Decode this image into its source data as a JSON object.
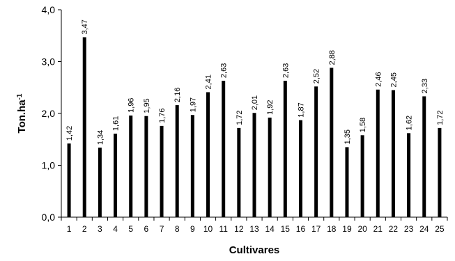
{
  "chart_data": {
    "type": "bar",
    "xlabel": "Cultivares",
    "ylabel": "Ton.ha",
    "ylabel_superscript": "-1",
    "ylim": [
      0,
      4
    ],
    "yticks": [
      0,
      1,
      2,
      3,
      4
    ],
    "ytick_labels": [
      "0,0",
      "1,0",
      "2,0",
      "3,0",
      "4,0"
    ],
    "grid": false,
    "bar_color": "#000000",
    "categories": [
      "1",
      "2",
      "3",
      "4",
      "5",
      "6",
      "7",
      "8",
      "9",
      "10",
      "11",
      "12",
      "13",
      "14",
      "15",
      "16",
      "17",
      "18",
      "19",
      "20",
      "21",
      "22",
      "23",
      "24",
      "25"
    ],
    "values": [
      1.42,
      3.47,
      1.34,
      1.61,
      1.96,
      1.95,
      1.76,
      2.16,
      1.97,
      2.41,
      2.63,
      1.72,
      2.01,
      1.92,
      2.63,
      1.87,
      2.52,
      2.88,
      1.35,
      1.58,
      2.46,
      2.45,
      1.62,
      2.33,
      1.72
    ],
    "value_labels": [
      "1,42",
      "3,47",
      "1,34",
      "1,61",
      "1,96",
      "1,95",
      "1,76",
      "2,16",
      "1,97",
      "2,41",
      "2,63",
      "1,72",
      "2,01",
      "1,92",
      "2,63",
      "1,87",
      "2,52",
      "2,88",
      "1,35",
      "1,58",
      "2,46",
      "2,45",
      "1,62",
      "2,33",
      "1,72"
    ]
  }
}
